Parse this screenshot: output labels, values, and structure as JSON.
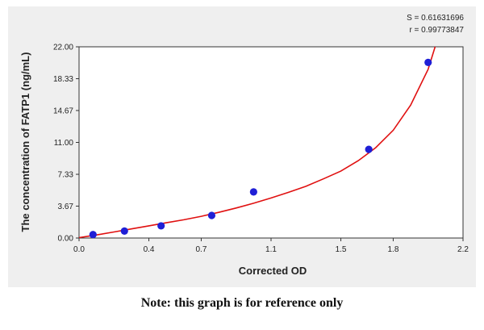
{
  "chart_data": {
    "type": "scatter",
    "xlabel": "Corrected OD",
    "ylabel": "The concentration of FATP1 (ng/mL)",
    "xlim": [
      0.0,
      2.2
    ],
    "ylim": [
      0.0,
      22.0
    ],
    "x_ticks": [
      0.0,
      0.4,
      0.7,
      1.1,
      1.5,
      1.8,
      2.2
    ],
    "x_tick_labels": [
      "0.0",
      "0.4",
      "0.7",
      "1.1",
      "1.5",
      "1.8",
      "2.2"
    ],
    "y_ticks": [
      0.0,
      3.67,
      7.33,
      11.0,
      14.67,
      18.33,
      22.0
    ],
    "y_tick_labels": [
      "0.00",
      "3.67",
      "7.33",
      "11.00",
      "14.67",
      "18.33",
      "22.00"
    ],
    "grid": false,
    "stats": {
      "s_label": "S = 0.61631696",
      "r_label": "r = 0.99773847"
    },
    "point_color": "#1f1fd6",
    "curve_color": "#e01010",
    "series": [
      {
        "points": [
          {
            "x": 0.08,
            "y": 0.4
          },
          {
            "x": 0.26,
            "y": 0.8
          },
          {
            "x": 0.47,
            "y": 1.4
          },
          {
            "x": 0.76,
            "y": 2.6
          },
          {
            "x": 1.0,
            "y": 5.3
          },
          {
            "x": 1.66,
            "y": 10.2
          },
          {
            "x": 2.0,
            "y": 20.2
          }
        ]
      }
    ],
    "fit_curve": {
      "points": [
        {
          "x": 0.0,
          "y": 0.05
        },
        {
          "x": 0.1,
          "y": 0.35
        },
        {
          "x": 0.2,
          "y": 0.7
        },
        {
          "x": 0.3,
          "y": 1.05
        },
        {
          "x": 0.4,
          "y": 1.4
        },
        {
          "x": 0.5,
          "y": 1.75
        },
        {
          "x": 0.6,
          "y": 2.1
        },
        {
          "x": 0.7,
          "y": 2.5
        },
        {
          "x": 0.8,
          "y": 2.95
        },
        {
          "x": 0.9,
          "y": 3.45
        },
        {
          "x": 1.0,
          "y": 4.0
        },
        {
          "x": 1.1,
          "y": 4.6
        },
        {
          "x": 1.2,
          "y": 5.25
        },
        {
          "x": 1.3,
          "y": 5.95
        },
        {
          "x": 1.4,
          "y": 6.8
        },
        {
          "x": 1.5,
          "y": 7.7
        },
        {
          "x": 1.6,
          "y": 8.9
        },
        {
          "x": 1.7,
          "y": 10.4
        },
        {
          "x": 1.8,
          "y": 12.4
        },
        {
          "x": 1.9,
          "y": 15.3
        },
        {
          "x": 2.0,
          "y": 19.4
        },
        {
          "x": 2.04,
          "y": 22.0
        }
      ]
    }
  },
  "note": "Note: this graph is for reference only"
}
